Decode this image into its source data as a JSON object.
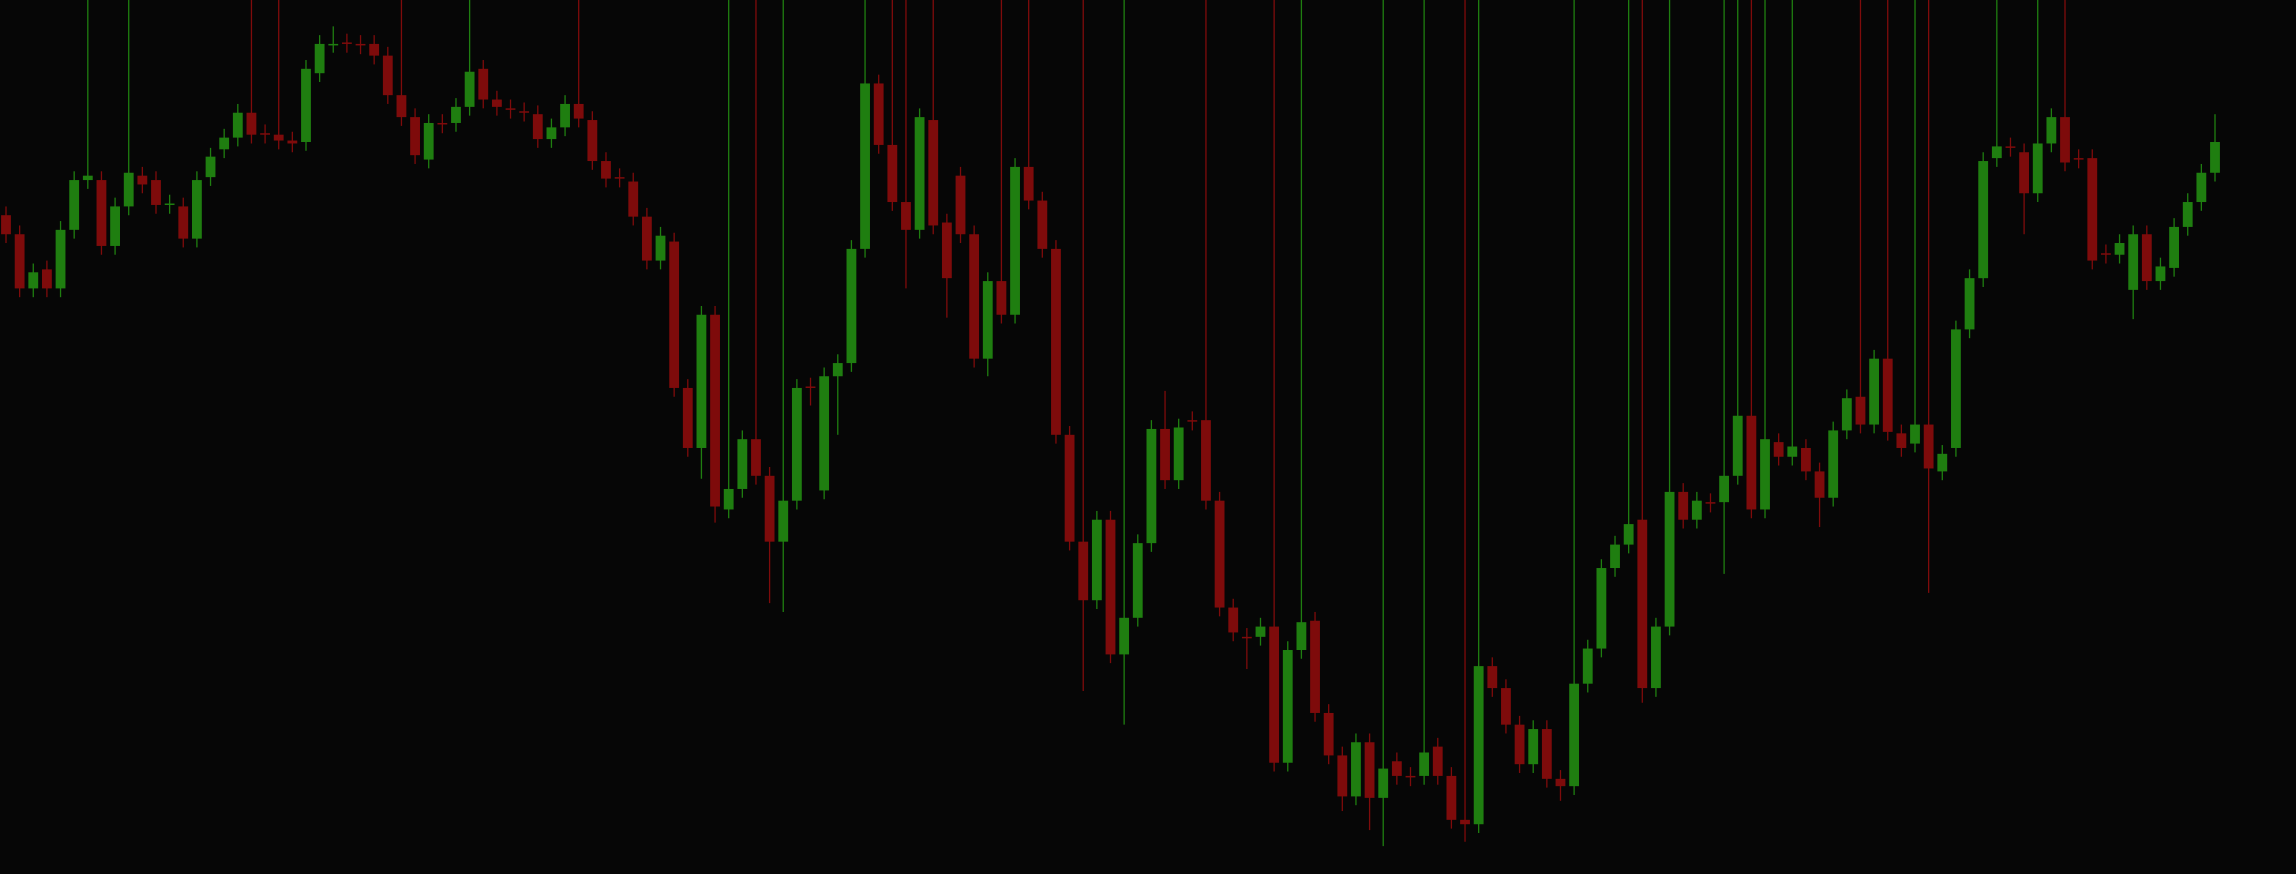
{
  "chart_data": {
    "type": "candlestick",
    "ylim": [
      0,
      597
    ],
    "up_color": "#1f7e10",
    "down_color": "#7e0b0b",
    "open": [
      450,
      437,
      400,
      413,
      400,
      440,
      474,
      474,
      429,
      456,
      477,
      474,
      457,
      456,
      434,
      476,
      495,
      503,
      520,
      506,
      505,
      501,
      500,
      547,
      567,
      568,
      567,
      567,
      559,
      532,
      517,
      488,
      513,
      513,
      524,
      550,
      529,
      523,
      521,
      519,
      502,
      510,
      526,
      515,
      487,
      476,
      473,
      449,
      419,
      432,
      332,
      291,
      382,
      249,
      263,
      297,
      272,
      227,
      255,
      333,
      262,
      340,
      349,
      427,
      540,
      498,
      459,
      440,
      515,
      445,
      477,
      437,
      352,
      405,
      382,
      483,
      460,
      427,
      300,
      227,
      187,
      242,
      150,
      175,
      226,
      304,
      269,
      310,
      310,
      255,
      182,
      162,
      162,
      169,
      76,
      153,
      173,
      110,
      81,
      53,
      90,
      52,
      77,
      67,
      67,
      87,
      67,
      37,
      34,
      142,
      127,
      102,
      75,
      99,
      65,
      60,
      130,
      154,
      209,
      225,
      242,
      127,
      169,
      261,
      242,
      254,
      254,
      272,
      313,
      249,
      295,
      285,
      291,
      275,
      257,
      303,
      326,
      307,
      352,
      301,
      294,
      307,
      275,
      291,
      372,
      407,
      489,
      497,
      493,
      465,
      499,
      517,
      489,
      489,
      424,
      423,
      399,
      437,
      405,
      414,
      442,
      459,
      479
    ],
    "close": [
      437,
      400,
      411,
      400,
      440,
      474,
      477,
      429,
      456,
      479,
      471,
      457,
      458,
      434,
      474,
      490,
      503,
      520,
      505,
      505,
      501,
      499,
      550,
      567,
      567,
      567,
      566,
      559,
      532,
      517,
      491,
      513,
      512,
      524,
      548,
      529,
      524,
      522,
      520,
      502,
      510,
      526,
      516,
      487,
      475,
      475,
      449,
      419,
      436,
      332,
      291,
      382,
      251,
      263,
      297,
      272,
      227,
      255,
      332,
      332,
      340,
      349,
      427,
      540,
      498,
      459,
      440,
      517,
      443,
      407,
      437,
      352,
      405,
      382,
      483,
      460,
      427,
      300,
      227,
      187,
      242,
      150,
      175,
      226,
      304,
      269,
      305,
      309,
      255,
      182,
      165,
      161,
      169,
      76,
      153,
      172,
      110,
      81,
      53,
      90,
      52,
      72,
      67,
      66,
      83,
      67,
      37,
      34,
      142,
      127,
      102,
      75,
      99,
      65,
      60,
      130,
      154,
      209,
      225,
      239,
      127,
      169,
      261,
      242,
      255,
      253,
      272,
      313,
      249,
      297,
      285,
      292,
      275,
      257,
      303,
      325,
      307,
      352,
      302,
      291,
      307,
      277,
      287,
      372,
      407,
      487,
      497,
      496,
      465,
      499,
      517,
      486,
      488,
      419,
      423,
      431,
      437,
      405,
      415,
      442,
      459,
      479,
      500
    ],
    "high": [
      456,
      443,
      417,
      419,
      446,
      480,
      597,
      480,
      462,
      597,
      483,
      480,
      464,
      462,
      480,
      496,
      509,
      526,
      597,
      512,
      597,
      507,
      556,
      573,
      579,
      574,
      573,
      573,
      565,
      597,
      523,
      519,
      519,
      530,
      597,
      556,
      535,
      529,
      527,
      525,
      516,
      532,
      597,
      521,
      493,
      482,
      479,
      455,
      442,
      438,
      338,
      388,
      388,
      597,
      303,
      597,
      278,
      597,
      338,
      339,
      346,
      355,
      433,
      597,
      546,
      597,
      597,
      523,
      597,
      451,
      483,
      443,
      411,
      597,
      489,
      597,
      466,
      433,
      306,
      597,
      248,
      248,
      597,
      232,
      310,
      330,
      311,
      316,
      597,
      261,
      188,
      168,
      175,
      597,
      159,
      597,
      179,
      116,
      87,
      96,
      96,
      597,
      83,
      73,
      597,
      93,
      73,
      597,
      597,
      148,
      133,
      108,
      105,
      105,
      71,
      597,
      160,
      215,
      231,
      597,
      597,
      175,
      597,
      267,
      261,
      260,
      597,
      597,
      597,
      597,
      301,
      597,
      297,
      281,
      309,
      331,
      597,
      358,
      597,
      307,
      597,
      597,
      293,
      378,
      413,
      493,
      597,
      503,
      499,
      597,
      523,
      597,
      495,
      495,
      430,
      437,
      443,
      443,
      421,
      448,
      465,
      485,
      519
    ],
    "low": [
      431,
      394,
      394,
      394,
      394,
      434,
      468,
      423,
      423,
      450,
      465,
      451,
      451,
      428,
      428,
      470,
      489,
      497,
      499,
      499,
      495,
      493,
      494,
      541,
      561,
      561,
      560,
      553,
      526,
      511,
      485,
      482,
      506,
      507,
      518,
      523,
      518,
      516,
      514,
      496,
      496,
      504,
      510,
      481,
      469,
      469,
      443,
      413,
      413,
      326,
      285,
      270,
      240,
      243,
      257,
      266,
      185,
      179,
      249,
      320,
      256,
      300,
      343,
      421,
      492,
      453,
      400,
      434,
      437,
      380,
      431,
      346,
      340,
      376,
      376,
      454,
      421,
      294,
      221,
      125,
      181,
      144,
      102,
      169,
      220,
      263,
      263,
      303,
      249,
      176,
      159,
      140,
      156,
      70,
      70,
      147,
      104,
      75,
      43,
      47,
      30,
      19,
      61,
      60,
      61,
      61,
      31,
      22,
      28,
      121,
      96,
      69,
      69,
      59,
      50,
      54,
      124,
      148,
      203,
      219,
      117,
      121,
      163,
      236,
      236,
      247,
      205,
      266,
      243,
      243,
      279,
      279,
      269,
      237,
      251,
      297,
      301,
      301,
      296,
      285,
      288,
      192,
      269,
      285,
      366,
      401,
      483,
      490,
      437,
      459,
      493,
      480,
      482,
      413,
      417,
      417,
      379,
      399,
      399,
      408,
      436,
      453,
      473
    ]
  }
}
